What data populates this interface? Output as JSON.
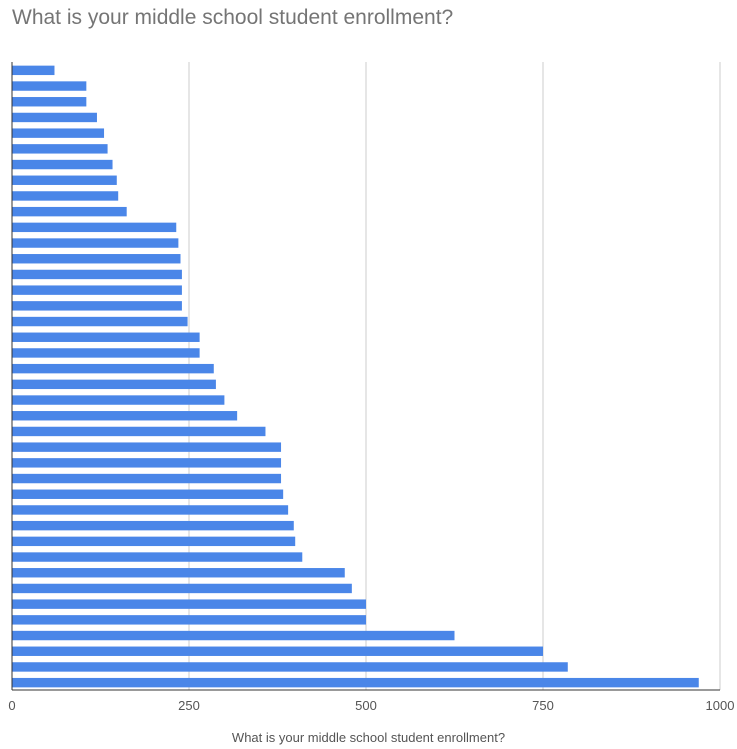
{
  "chart_data": {
    "type": "bar",
    "orientation": "horizontal",
    "title": "What is your middle school student enrollment?",
    "xlabel": "What is your middle school student enrollment?",
    "ylabel": "",
    "xlim": [
      0,
      1000
    ],
    "xticks": [
      0,
      250,
      500,
      750,
      1000
    ],
    "grid": true,
    "legend": "none",
    "bar_color": "#4a86e8",
    "values": [
      60,
      105,
      105,
      120,
      130,
      135,
      142,
      148,
      150,
      162,
      232,
      235,
      238,
      240,
      240,
      240,
      248,
      265,
      265,
      285,
      288,
      300,
      318,
      358,
      380,
      380,
      380,
      383,
      390,
      398,
      400,
      410,
      470,
      480,
      500,
      500,
      625,
      750,
      785,
      970
    ]
  }
}
